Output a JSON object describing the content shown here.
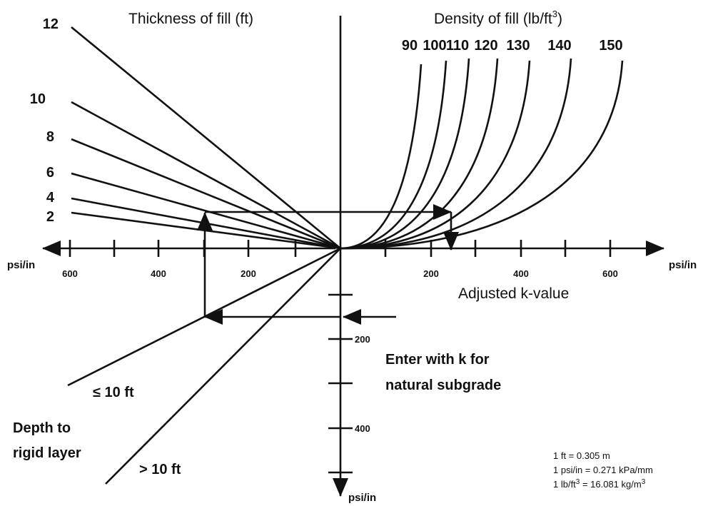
{
  "thickness_axis": {
    "title": "Thickness of fill (ft)",
    "labels": [
      "12",
      "10",
      "8",
      "6",
      "4",
      "2"
    ]
  },
  "density_axis": {
    "title": "Density of fill (lb/ft",
    "title_sup": "3",
    "title_end": ")",
    "labels": [
      "90",
      "100",
      "110",
      "120",
      "130",
      "140",
      "150"
    ]
  },
  "k_axis_left": {
    "unit": "psi/in",
    "labels": [
      "600",
      "400",
      "200"
    ]
  },
  "k_axis_right": {
    "unit": "psi/in",
    "labels": [
      "200",
      "400",
      "600"
    ],
    "title": "Adjusted k-value"
  },
  "subgrade_axis": {
    "unit": "psi/in",
    "labels": [
      "200",
      "400"
    ],
    "instruction": [
      "Enter with k for",
      "natural subgrade"
    ]
  },
  "depth": {
    "title": [
      "Depth to",
      "rigid layer"
    ],
    "lines": [
      "≤ 10 ft",
      "> 10 ft"
    ]
  },
  "conversions": [
    [
      "1 ft = 0.305 m"
    ],
    [
      "1 psi/in = 0.271 kPa/mm"
    ],
    [
      "1 lb/ft",
      "3",
      " = 16.081 kg/m",
      "3"
    ]
  ]
}
